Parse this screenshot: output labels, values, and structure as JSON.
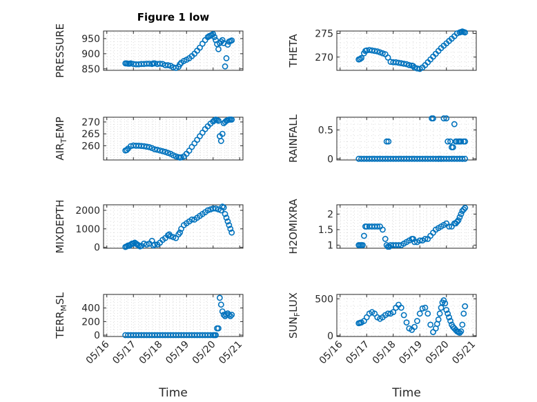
{
  "figure": {
    "title": "Figure 1 low",
    "xlabel": "Time",
    "xticks": [
      "05/16",
      "05/17",
      "05/18",
      "05/19",
      "05/20",
      "05/21"
    ],
    "marker_color": "#0072BD",
    "grid_color": "#d9d9d9",
    "axis_color": "#262626"
  },
  "chart_data": [
    {
      "type": "scatter",
      "ylabel": "PRESSURE",
      "grid": true,
      "xlim": [
        0,
        5
      ],
      "ylim": [
        845,
        975
      ],
      "yticks": [
        850,
        900,
        950
      ],
      "x": [
        0.7,
        0.75,
        0.8,
        0.85,
        0.9,
        1.0,
        1.1,
        1.2,
        1.3,
        1.4,
        1.5,
        1.6,
        1.7,
        1.75,
        1.8,
        1.9,
        2.0,
        2.1,
        2.2,
        2.3,
        2.4,
        2.5,
        2.6,
        2.7,
        2.75,
        2.8,
        2.9,
        3.0,
        3.1,
        3.2,
        3.3,
        3.4,
        3.5,
        3.6,
        3.7,
        3.8,
        3.85,
        3.9,
        3.95,
        4.0,
        4.05,
        4.1,
        4.15,
        4.2,
        4.25,
        4.3,
        4.35,
        4.4,
        4.45,
        4.5,
        4.55,
        4.6,
        4.65,
        4.7
      ],
      "y": [
        868,
        868,
        867,
        867,
        868,
        866,
        865,
        865,
        866,
        866,
        867,
        867,
        866,
        868,
        868,
        866,
        867,
        866,
        862,
        862,
        860,
        855,
        853,
        857,
        865,
        870,
        876,
        880,
        885,
        892,
        900,
        910,
        920,
        933,
        945,
        955,
        958,
        960,
        962,
        965,
        955,
        945,
        932,
        915,
        935,
        940,
        945,
        935,
        858,
        885,
        930,
        940,
        942,
        944
      ]
    },
    {
      "type": "scatter",
      "ylabel": "THETA",
      "grid": true,
      "xlim": [
        0,
        5
      ],
      "ylim": [
        267.2,
        275.5
      ],
      "yticks": [
        270,
        275
      ],
      "x": [
        0.7,
        0.75,
        0.8,
        0.9,
        0.95,
        1.0,
        1.1,
        1.2,
        1.3,
        1.4,
        1.5,
        1.6,
        1.7,
        1.8,
        1.9,
        2.0,
        2.1,
        2.2,
        2.3,
        2.4,
        2.5,
        2.6,
        2.7,
        2.75,
        2.8,
        2.9,
        3.0,
        3.1,
        3.2,
        3.3,
        3.4,
        3.5,
        3.6,
        3.7,
        3.8,
        3.9,
        4.0,
        4.1,
        4.2,
        4.3,
        4.4,
        4.5,
        4.55,
        4.6,
        4.65,
        4.7
      ],
      "y": [
        269.5,
        269.6,
        269.8,
        270.8,
        271.3,
        271.4,
        271.5,
        271.4,
        271.3,
        271.2,
        271.0,
        270.8,
        270.6,
        269.9,
        269.0,
        268.9,
        268.9,
        268.8,
        268.7,
        268.6,
        268.5,
        268.3,
        268.2,
        268.1,
        267.8,
        267.6,
        267.5,
        267.8,
        268.3,
        268.9,
        269.5,
        270.1,
        270.7,
        271.3,
        271.9,
        272.4,
        272.9,
        273.4,
        273.9,
        274.4,
        275.0,
        275.2,
        275.3,
        275.4,
        275.3,
        275.2
      ]
    },
    {
      "type": "scatter",
      "ylabel": "AIR_TEMP",
      "grid": true,
      "xlim": [
        0,
        5
      ],
      "ylim": [
        254,
        272
      ],
      "yticks": [
        260,
        265,
        270
      ],
      "x": [
        0.7,
        0.75,
        0.8,
        0.9,
        1.0,
        1.1,
        1.2,
        1.3,
        1.4,
        1.5,
        1.6,
        1.7,
        1.8,
        1.9,
        2.0,
        2.1,
        2.2,
        2.3,
        2.4,
        2.5,
        2.6,
        2.7,
        2.75,
        2.8,
        2.9,
        3.0,
        3.1,
        3.2,
        3.3,
        3.4,
        3.5,
        3.6,
        3.7,
        3.8,
        3.9,
        4.0,
        4.05,
        4.1,
        4.15,
        4.2,
        4.25,
        4.3,
        4.35,
        4.4,
        4.45,
        4.5,
        4.55,
        4.6,
        4.65,
        4.7
      ],
      "y": [
        258.0,
        258.2,
        258.8,
        259.8,
        260.1,
        260.0,
        260.0,
        259.9,
        259.8,
        259.6,
        259.4,
        259.0,
        258.5,
        258.3,
        258.0,
        257.7,
        257.4,
        257.0,
        256.6,
        256.0,
        255.5,
        255.2,
        255.0,
        255.1,
        255.5,
        256.6,
        257.9,
        259.5,
        261.0,
        262.5,
        264.0,
        265.5,
        267.0,
        268.2,
        269.3,
        270.2,
        270.7,
        271.0,
        270.8,
        270.5,
        264.0,
        262.0,
        265.0,
        269.5,
        270.0,
        270.5,
        270.8,
        271.0,
        271.0,
        271.0
      ]
    },
    {
      "type": "scatter",
      "ylabel": "RAINFALL",
      "grid": true,
      "xlim": [
        0,
        5
      ],
      "ylim": [
        -0.02,
        0.72
      ],
      "yticks": [
        0,
        0.5
      ],
      "x": [
        0.7,
        0.8,
        0.9,
        1.0,
        1.1,
        1.2,
        1.3,
        1.4,
        1.5,
        1.6,
        1.7,
        1.8,
        1.9,
        2.0,
        2.1,
        2.2,
        2.3,
        2.4,
        2.5,
        2.6,
        2.7,
        2.8,
        2.9,
        3.0,
        3.1,
        3.2,
        3.3,
        3.4,
        3.5,
        3.6,
        3.7,
        3.8,
        3.9,
        4.0,
        4.1,
        4.2,
        4.3,
        4.4,
        4.5,
        4.6,
        4.7,
        1.75,
        1.82,
        3.45,
        3.5,
        3.9,
        4.0,
        3.8,
        3.7,
        4.2,
        4.3,
        4.05,
        4.15,
        4.25,
        4.35,
        4.45,
        4.5,
        4.55,
        4.6,
        4.65,
        4.7,
        4.38
      ],
      "y": [
        0,
        0,
        0,
        0,
        0,
        0,
        0,
        0,
        0,
        0,
        0,
        0,
        0,
        0,
        0,
        0,
        0,
        0,
        0,
        0,
        0,
        0,
        0,
        0,
        0,
        0,
        0,
        0,
        0,
        0,
        0,
        0,
        0,
        0,
        0,
        0,
        0,
        0,
        0,
        0,
        0,
        0.3,
        0.3,
        0.7,
        0.7,
        0.7,
        0.7,
        0,
        0,
        0.2,
        0.6,
        0.3,
        0.3,
        0.2,
        0.3,
        0.3,
        0.3,
        0.3,
        0,
        0.3,
        0.3,
        0.3
      ]
    },
    {
      "type": "scatter",
      "ylabel": "MIXDEPTH",
      "grid": true,
      "xlim": [
        0,
        5
      ],
      "ylim": [
        -50,
        2300
      ],
      "yticks": [
        0,
        1000,
        2000
      ],
      "x": [
        0.7,
        0.75,
        0.8,
        0.85,
        0.9,
        0.95,
        1.0,
        1.05,
        1.1,
        1.15,
        1.2,
        1.25,
        1.3,
        1.4,
        1.5,
        1.6,
        1.7,
        1.75,
        1.8,
        1.9,
        2.0,
        2.1,
        2.2,
        2.3,
        2.35,
        2.4,
        2.5,
        2.6,
        2.7,
        2.75,
        2.8,
        2.9,
        3.0,
        3.1,
        3.2,
        3.3,
        3.4,
        3.5,
        3.6,
        3.7,
        3.8,
        3.9,
        4.0,
        4.1,
        4.2,
        4.3,
        4.35,
        4.4,
        4.45,
        4.5,
        4.55,
        4.6,
        4.65,
        4.7
      ],
      "y": [
        20,
        50,
        100,
        80,
        150,
        200,
        200,
        250,
        200,
        150,
        100,
        50,
        80,
        200,
        150,
        200,
        350,
        100,
        150,
        150,
        250,
        400,
        500,
        650,
        700,
        600,
        550,
        500,
        700,
        800,
        1000,
        1200,
        1300,
        1400,
        1500,
        1500,
        1600,
        1700,
        1800,
        1900,
        2000,
        2050,
        2100,
        2100,
        2050,
        2000,
        2200,
        2150,
        1800,
        1600,
        1400,
        1200,
        1000,
        800
      ]
    },
    {
      "type": "scatter",
      "ylabel": "H2OMIXRA",
      "grid": true,
      "xlim": [
        0,
        5
      ],
      "ylim": [
        0.9,
        2.3
      ],
      "yticks": [
        1,
        1.5,
        2
      ],
      "x": [
        0.7,
        0.75,
        0.8,
        0.85,
        0.9,
        0.95,
        1.0,
        1.1,
        1.2,
        1.3,
        1.4,
        1.5,
        1.6,
        1.7,
        1.75,
        1.8,
        1.85,
        1.9,
        2.0,
        2.1,
        2.2,
        2.3,
        2.4,
        2.5,
        2.6,
        2.7,
        2.75,
        2.8,
        2.9,
        3.0,
        3.1,
        3.2,
        3.3,
        3.4,
        3.5,
        3.6,
        3.7,
        3.8,
        3.9,
        4.0,
        4.1,
        4.2,
        4.3,
        4.35,
        4.4,
        4.45,
        4.5,
        4.55,
        4.6,
        4.65,
        4.7
      ],
      "y": [
        1.0,
        1.0,
        1.0,
        1.0,
        1.3,
        1.6,
        1.6,
        1.6,
        1.6,
        1.6,
        1.6,
        1.6,
        1.5,
        1.2,
        1.0,
        0.95,
        0.95,
        1.0,
        1.0,
        1.0,
        1.0,
        1.0,
        1.05,
        1.1,
        1.15,
        1.2,
        1.2,
        1.1,
        1.1,
        1.15,
        1.15,
        1.2,
        1.2,
        1.3,
        1.4,
        1.5,
        1.55,
        1.6,
        1.65,
        1.7,
        1.6,
        1.6,
        1.7,
        1.7,
        1.75,
        1.8,
        1.9,
        2.0,
        2.1,
        2.15,
        2.2
      ]
    },
    {
      "type": "scatter",
      "ylabel": "TERR_MSL",
      "grid": true,
      "xlim": [
        0,
        5
      ],
      "ylim": [
        -20,
        600
      ],
      "yticks": [
        0,
        200,
        400
      ],
      "x": [
        0.7,
        0.8,
        0.9,
        1.0,
        1.1,
        1.2,
        1.3,
        1.4,
        1.5,
        1.6,
        1.7,
        1.8,
        1.9,
        2.0,
        2.1,
        2.2,
        2.3,
        2.4,
        2.5,
        2.6,
        2.7,
        2.8,
        2.9,
        3.0,
        3.1,
        3.2,
        3.3,
        3.4,
        3.5,
        3.6,
        3.7,
        3.8,
        3.9,
        4.0,
        4.05,
        4.1,
        4.15,
        4.2,
        4.25,
        4.3,
        4.35,
        4.4,
        4.45,
        4.5,
        4.55,
        4.6,
        4.65,
        4.7
      ],
      "y": [
        0,
        0,
        0,
        0,
        0,
        0,
        0,
        0,
        0,
        0,
        0,
        0,
        0,
        0,
        0,
        0,
        0,
        0,
        0,
        0,
        0,
        0,
        0,
        0,
        0,
        0,
        0,
        0,
        0,
        0,
        0,
        0,
        0,
        0,
        0,
        0,
        100,
        100,
        550,
        450,
        350,
        300,
        280,
        300,
        320,
        300,
        280,
        300
      ]
    },
    {
      "type": "scatter",
      "ylabel": "SUN_FLUX",
      "grid": true,
      "xlim": [
        0,
        5
      ],
      "ylim": [
        -10,
        560
      ],
      "yticks": [
        0,
        500
      ],
      "x": [
        0.7,
        0.75,
        0.8,
        0.9,
        1.0,
        1.1,
        1.2,
        1.3,
        1.4,
        1.5,
        1.6,
        1.7,
        1.8,
        1.9,
        2.0,
        2.1,
        2.2,
        2.3,
        2.4,
        2.5,
        2.6,
        2.7,
        2.8,
        2.9,
        3.0,
        3.1,
        3.2,
        3.3,
        3.4,
        3.5,
        3.6,
        3.65,
        3.7,
        3.75,
        3.8,
        3.85,
        3.9,
        3.95,
        4.0,
        4.05,
        4.1,
        4.15,
        4.2,
        4.25,
        4.3,
        4.35,
        4.4,
        4.45,
        4.5,
        4.55,
        4.6,
        4.65,
        4.7
      ],
      "y": [
        170,
        175,
        180,
        200,
        250,
        300,
        320,
        300,
        250,
        230,
        250,
        280,
        300,
        300,
        320,
        380,
        420,
        380,
        280,
        180,
        100,
        80,
        120,
        200,
        300,
        370,
        380,
        300,
        150,
        50,
        100,
        160,
        220,
        300,
        380,
        450,
        480,
        440,
        350,
        300,
        250,
        200,
        150,
        120,
        100,
        80,
        60,
        50,
        40,
        60,
        150,
        300,
        400
      ]
    }
  ]
}
